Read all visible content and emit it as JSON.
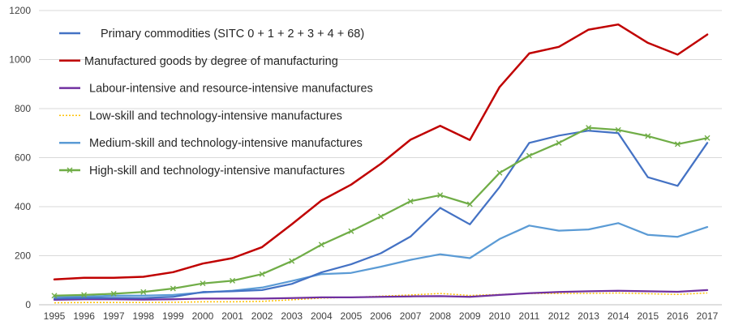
{
  "chart_data": {
    "type": "line",
    "title": "",
    "xlabel": "",
    "ylabel": "",
    "ylim": [
      0,
      1200
    ],
    "yticks": [
      0,
      200,
      400,
      600,
      800,
      1000,
      1200
    ],
    "grid": true,
    "legend_position": "top-left",
    "categories": [
      "1995",
      "1996",
      "1997",
      "1998",
      "1999",
      "2000",
      "2001",
      "2002",
      "2003",
      "2004",
      "2005",
      "2006",
      "2007",
      "2008",
      "2009",
      "2010",
      "2011",
      "2012",
      "2013",
      "2014",
      "2015",
      "2016",
      "2017"
    ],
    "series": [
      {
        "name": "Primary commodities (SITC 0 + 1 + 2 + 3 + 4 + 68)",
        "color": "#4472c4",
        "style": "solid",
        "values": [
          25,
          27,
          28,
          27,
          32,
          52,
          55,
          60,
          85,
          132,
          165,
          210,
          278,
          395,
          328,
          480,
          660,
          690,
          710,
          700,
          520,
          485,
          660
        ]
      },
      {
        "name": "Manufactured goods by degree of manufacturing",
        "color": "#c00000",
        "style": "solid",
        "values": [
          103,
          110,
          110,
          114,
          133,
          168,
          190,
          235,
          328,
          425,
          490,
          575,
          673,
          730,
          672,
          888,
          1025,
          1052,
          1122,
          1143,
          1068,
          1020,
          1102
        ]
      },
      {
        "name": "Labour-intensive and resource-intensive manufactures",
        "color": "#7030a0",
        "style": "solid",
        "values": [
          20,
          22,
          22,
          21,
          22,
          25,
          25,
          25,
          27,
          30,
          30,
          32,
          34,
          35,
          32,
          40,
          47,
          52,
          55,
          57,
          55,
          53,
          60
        ]
      },
      {
        "name": "Low-skill and technology-intensive manufactures",
        "color": "#ffc000",
        "style": "dotted",
        "values": [
          8,
          9,
          9,
          9,
          10,
          12,
          12,
          14,
          20,
          27,
          30,
          35,
          40,
          46,
          38,
          42,
          46,
          46,
          46,
          48,
          45,
          42,
          48
        ]
      },
      {
        "name": "Medium-skill and technology-intensive manufactures",
        "color": "#5b9bd5",
        "style": "solid",
        "values": [
          33,
          33,
          37,
          37,
          40,
          50,
          57,
          70,
          97,
          125,
          130,
          155,
          183,
          206,
          190,
          268,
          323,
          302,
          307,
          333,
          285,
          277,
          317
        ]
      },
      {
        "name": "High-skill and technology-intensive manufactures",
        "color": "#70ad47",
        "style": "solid-marker",
        "values": [
          37,
          40,
          45,
          52,
          66,
          87,
          98,
          125,
          178,
          245,
          300,
          360,
          422,
          447,
          410,
          538,
          608,
          660,
          722,
          713,
          688,
          655,
          680
        ]
      }
    ]
  }
}
